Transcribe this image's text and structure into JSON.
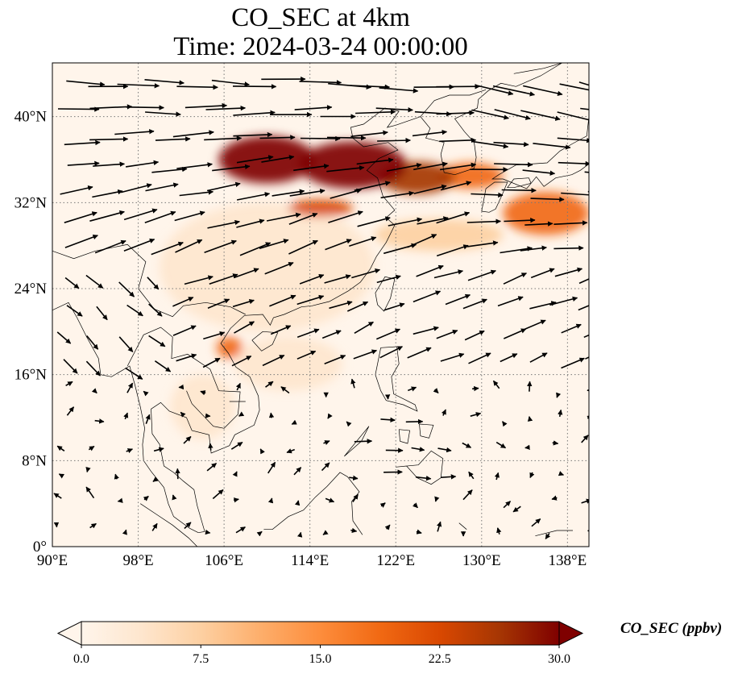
{
  "title_line1": "CO_SEC at 4km",
  "title_line2": "Time: 2024-03-24 00:00:00",
  "map": {
    "lon_range": [
      90,
      140
    ],
    "lat_range": [
      0,
      45
    ],
    "lon_ticks": [
      {
        "value": 90,
        "label": "90°E"
      },
      {
        "value": 98,
        "label": "98°E"
      },
      {
        "value": 106,
        "label": "106°E"
      },
      {
        "value": 114,
        "label": "114°E"
      },
      {
        "value": 122,
        "label": "122°E"
      },
      {
        "value": 130,
        "label": "130°E"
      },
      {
        "value": 138,
        "label": "138°E"
      }
    ],
    "lat_ticks": [
      {
        "value": 0,
        "label": "0°"
      },
      {
        "value": 8,
        "label": "8°N"
      },
      {
        "value": 16,
        "label": "16°N"
      },
      {
        "value": 24,
        "label": "24°N"
      },
      {
        "value": 32,
        "label": "32°N"
      },
      {
        "value": 40,
        "label": "40°N"
      }
    ],
    "gridlines": true
  },
  "colorbar": {
    "label": "CO_SEC (ppbv)",
    "min": 0.0,
    "max": 30.0,
    "ticks": [
      "0.0",
      "7.5",
      "15.0",
      "22.5",
      "30.0"
    ],
    "colors": [
      "#fff5eb",
      "#fee6ce",
      "#fdd0a2",
      "#fdae6b",
      "#fd8d3c",
      "#f16913",
      "#d94801",
      "#a63603",
      "#7f0000"
    ],
    "extend": "both"
  },
  "plumes": [
    {
      "lon": 110,
      "lat": 36,
      "rlon": 4.5,
      "rlat": 2.2,
      "value": 30
    },
    {
      "lon": 118,
      "lat": 35.5,
      "rlon": 5,
      "rlat": 2.2,
      "value": 30
    },
    {
      "lon": 124,
      "lat": 34.3,
      "rlon": 3.5,
      "rlat": 1.5,
      "value": 26
    },
    {
      "lon": 129,
      "lat": 34.5,
      "rlon": 3,
      "rlat": 1.2,
      "value": 20
    },
    {
      "lon": 136,
      "lat": 31,
      "rlon": 4,
      "rlat": 2,
      "value": 20
    },
    {
      "lon": 115,
      "lat": 31.5,
      "rlon": 3,
      "rlat": 0.8,
      "value": 24
    },
    {
      "lon": 106.5,
      "lat": 18.5,
      "rlon": 1.2,
      "rlat": 1.0,
      "value": 20
    },
    {
      "lon": 126,
      "lat": 29,
      "rlon": 6,
      "rlat": 1.5,
      "value": 8
    },
    {
      "lon": 110,
      "lat": 26,
      "rlon": 10,
      "rlat": 6,
      "value": 3
    },
    {
      "lon": 112,
      "lat": 17,
      "rlon": 5,
      "rlat": 2.5,
      "value": 5
    },
    {
      "lon": 104,
      "lat": 13,
      "rlon": 3,
      "rlat": 3,
      "value": 2
    }
  ]
}
